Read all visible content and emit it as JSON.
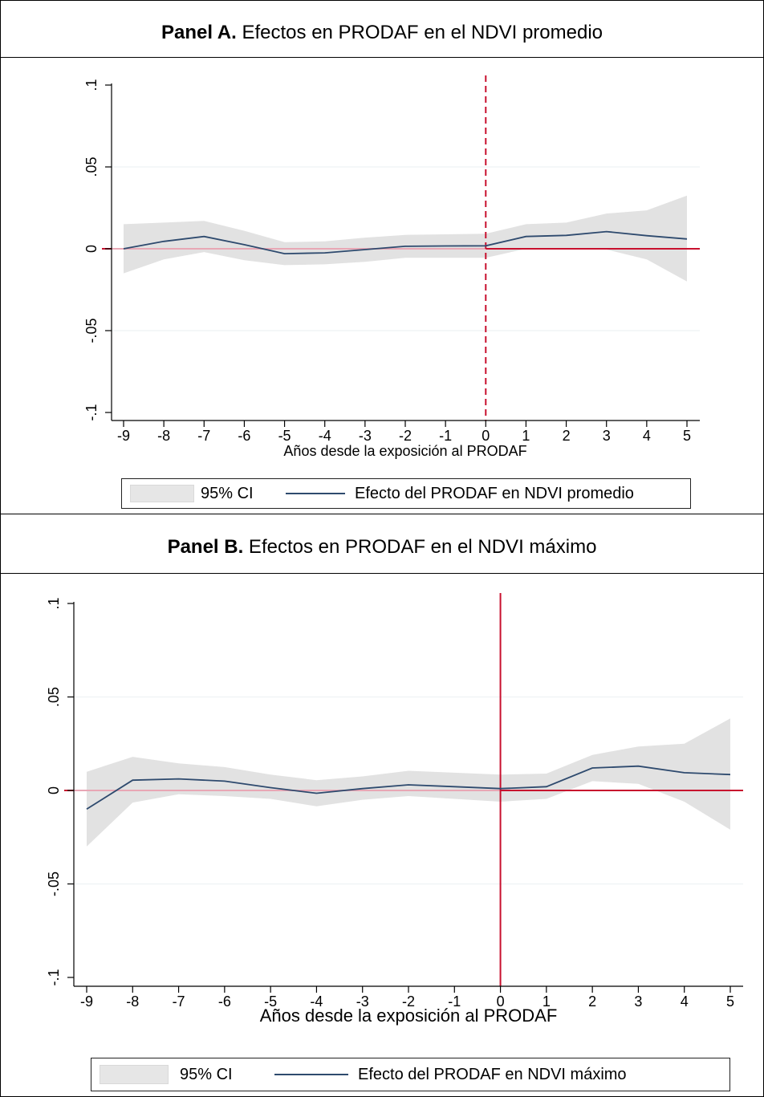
{
  "colors": {
    "ci_fill": "#e2e2e2",
    "effect_line": "#2e4a6e",
    "ref_line": "#c8102e",
    "zero_line_soft": "#e8a7b5",
    "grid": "#eef2f4"
  },
  "panels": [
    {
      "title_bold": "Panel A.",
      "title_rest": " Efectos en PRODAF en el NDVI promedio",
      "legend_ci": "95% CI",
      "legend_line": "Efecto del PRODAF en NDVI promedio"
    },
    {
      "title_bold": "Panel B.",
      "title_rest": " Efectos en PRODAF en el NDVI máximo",
      "legend_ci": "95% CI",
      "legend_line": "Efecto del PRODAF en NDVI máximo"
    }
  ],
  "chart_data": [
    {
      "type": "line",
      "title": "Panel A. Efectos en PRODAF en el NDVI promedio",
      "xlabel": "Años desde la exposición al PRODAF",
      "ylabel": "",
      "x": [
        -9,
        -8,
        -7,
        -6,
        -5,
        -4,
        -3,
        -2,
        -1,
        0,
        1,
        2,
        3,
        4,
        5
      ],
      "xticks": [
        "-9",
        "-8",
        "-7",
        "-6",
        "-5",
        "-4",
        "-3",
        "-2",
        "-1",
        "0",
        "1",
        "2",
        "3",
        "4",
        "5"
      ],
      "yticks": [
        -0.1,
        -0.05,
        0,
        0.05,
        0.1
      ],
      "ytick_labels": [
        "-.1",
        "-.05",
        "0",
        ".05",
        ".1"
      ],
      "ylim": [
        -0.1,
        0.1
      ],
      "xlim": [
        -9,
        5
      ],
      "grid": true,
      "series": [
        {
          "name": "Efecto del PRODAF en NDVI promedio",
          "values": [
            0.0,
            0.0045,
            0.0075,
            0.0025,
            -0.003,
            -0.0025,
            -0.0005,
            0.0015,
            0.0017,
            0.0018,
            0.0075,
            0.0082,
            0.0105,
            0.008,
            0.006
          ]
        },
        {
          "name": "95% CI lower",
          "values": [
            -0.015,
            -0.0065,
            -0.002,
            -0.007,
            -0.01,
            -0.0095,
            -0.008,
            -0.0055,
            -0.0055,
            -0.0055,
            0.0,
            0.0,
            -0.0005,
            -0.0065,
            -0.02
          ]
        },
        {
          "name": "95% CI upper",
          "values": [
            0.015,
            0.016,
            0.017,
            0.011,
            0.004,
            0.0045,
            0.0068,
            0.0085,
            0.0088,
            0.0092,
            0.015,
            0.016,
            0.0215,
            0.0235,
            0.0325
          ]
        }
      ],
      "reference_lines": {
        "vertical_x": 0,
        "vertical_style": "dashed",
        "horizontal_y": 0
      },
      "legend": {
        "placement": "bottom",
        "entries": [
          "95% CI",
          "Efecto del PRODAF en NDVI promedio"
        ]
      }
    },
    {
      "type": "line",
      "title": "Panel B. Efectos en PRODAF en el NDVI máximo",
      "xlabel": "Años desde la exposición al PRODAF",
      "ylabel": "",
      "x": [
        -9,
        -8,
        -7,
        -6,
        -5,
        -4,
        -3,
        -2,
        -1,
        0,
        1,
        2,
        3,
        4,
        5
      ],
      "xticks": [
        "-9",
        "-8",
        "-7",
        "-6",
        "-5",
        "-4",
        "-3",
        "-2",
        "-1",
        "0",
        "1",
        "2",
        "3",
        "4",
        "5"
      ],
      "yticks": [
        -0.1,
        -0.05,
        0,
        0.05,
        0.1
      ],
      "ytick_labels": [
        "-.1",
        "-.05",
        "0",
        ".05",
        ".1"
      ],
      "ylim": [
        -0.1,
        0.1
      ],
      "xlim": [
        -9,
        5
      ],
      "grid": true,
      "series": [
        {
          "name": "Efecto del PRODAF en NDVI máximo",
          "values": [
            -0.01,
            0.0055,
            0.0062,
            0.005,
            0.0015,
            -0.0015,
            0.001,
            0.003,
            0.002,
            0.001,
            0.002,
            0.012,
            0.013,
            0.0095,
            0.0085
          ]
        },
        {
          "name": "95% CI lower",
          "values": [
            -0.03,
            -0.0065,
            -0.002,
            -0.003,
            -0.0045,
            -0.0085,
            -0.005,
            -0.003,
            -0.0045,
            -0.006,
            -0.0045,
            0.005,
            0.0035,
            -0.006,
            -0.021
          ]
        },
        {
          "name": "95% CI upper",
          "values": [
            0.01,
            0.018,
            0.0145,
            0.0125,
            0.0085,
            0.0055,
            0.0075,
            0.0105,
            0.0095,
            0.0085,
            0.009,
            0.019,
            0.0235,
            0.025,
            0.0385
          ]
        }
      ],
      "reference_lines": {
        "vertical_x": 0,
        "vertical_style": "solid",
        "horizontal_y": 0
      },
      "legend": {
        "placement": "bottom",
        "entries": [
          "95% CI",
          "Efecto del PRODAF en NDVI máximo"
        ]
      }
    }
  ]
}
